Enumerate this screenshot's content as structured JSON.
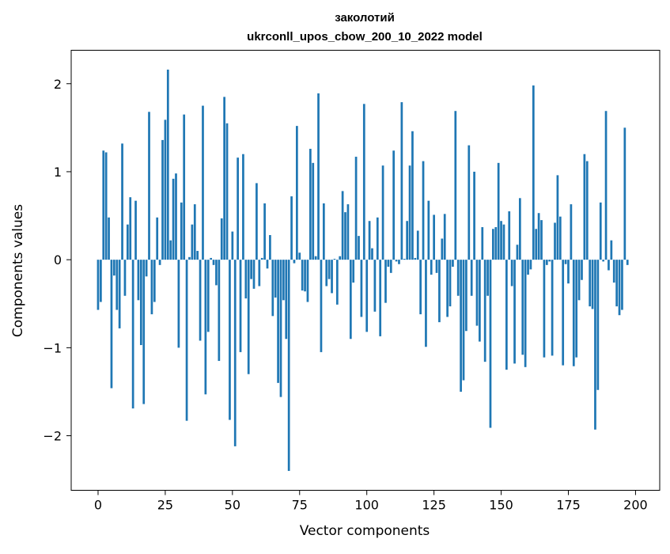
{
  "chart_data": {
    "type": "bar",
    "title": "заколотий",
    "subtitle": "ukrconll_upos_cbow_200_10_2022 model",
    "xlabel": "Vector components",
    "ylabel": "Components values",
    "xlim": [
      -10,
      209
    ],
    "ylim": [
      -2.62,
      2.38
    ],
    "xticks": [
      0,
      25,
      50,
      75,
      100,
      125,
      150,
      175,
      200
    ],
    "yticks": [
      -2,
      -1,
      0,
      1,
      2
    ],
    "ytick_labels": [
      "−2",
      "−1",
      "0",
      "1",
      "2"
    ],
    "grid": false,
    "legend": "none",
    "bar_color": "#1f77b4",
    "values": [
      -0.57,
      -0.48,
      1.24,
      1.22,
      0.48,
      -1.46,
      -0.18,
      -0.57,
      -0.78,
      1.32,
      -0.41,
      0.4,
      0.71,
      -1.69,
      0.67,
      -0.46,
      -0.97,
      -1.64,
      -0.19,
      1.68,
      -0.62,
      -0.48,
      0.48,
      -0.06,
      1.36,
      1.59,
      2.16,
      0.22,
      0.92,
      0.98,
      -1.0,
      0.65,
      1.65,
      -1.83,
      0.03,
      0.4,
      0.63,
      0.1,
      -0.92,
      1.75,
      -1.53,
      -0.82,
      0.02,
      -0.06,
      -0.29,
      -1.15,
      0.47,
      1.85,
      1.55,
      -1.82,
      0.32,
      -2.12,
      1.16,
      -1.05,
      1.2,
      -0.44,
      -1.3,
      -0.22,
      -0.33,
      0.87,
      -0.3,
      0.02,
      0.64,
      -0.1,
      0.28,
      -0.64,
      -0.43,
      -1.4,
      -1.56,
      -0.46,
      -0.9,
      -2.4,
      0.72,
      -0.04,
      1.52,
      0.08,
      -0.35,
      -0.36,
      -0.48,
      1.26,
      1.1,
      0.04,
      1.89,
      -1.05,
      0.64,
      -0.3,
      -0.22,
      -0.38,
      0.01,
      -0.51,
      0.04,
      0.78,
      0.54,
      0.63,
      -0.9,
      -0.26,
      1.17,
      0.27,
      -0.65,
      1.77,
      -0.82,
      0.44,
      0.13,
      -0.59,
      0.48,
      -0.87,
      1.07,
      -0.49,
      -0.08,
      -0.15,
      1.24,
      -0.02,
      -0.05,
      1.79,
      0.01,
      0.44,
      1.07,
      1.46,
      0.02,
      0.33,
      -0.62,
      1.12,
      -0.99,
      0.67,
      -0.17,
      0.51,
      -0.15,
      -0.71,
      0.24,
      0.52,
      -0.65,
      -0.53,
      -0.08,
      1.69,
      -0.41,
      -1.5,
      -1.37,
      -0.81,
      1.3,
      -0.41,
      1.0,
      -0.75,
      -0.93,
      0.37,
      -1.16,
      -0.41,
      -1.91,
      0.35,
      0.37,
      1.1,
      0.44,
      0.4,
      -1.25,
      0.55,
      -0.3,
      -1.18,
      0.17,
      0.7,
      -1.08,
      -1.22,
      -0.17,
      -0.11,
      1.98,
      0.35,
      0.53,
      0.45,
      -1.11,
      -0.06,
      -0.02,
      -1.09,
      0.42,
      0.96,
      0.49,
      -1.2,
      -0.05,
      -0.27,
      0.63,
      -1.21,
      -1.11,
      -0.46,
      -0.23,
      1.2,
      1.12,
      -0.53,
      -0.56,
      -1.93,
      -1.48,
      0.65,
      -0.02,
      1.69,
      -0.12,
      0.22,
      -0.26,
      -0.53,
      -0.63,
      -0.57,
      1.5,
      -0.06
    ]
  }
}
